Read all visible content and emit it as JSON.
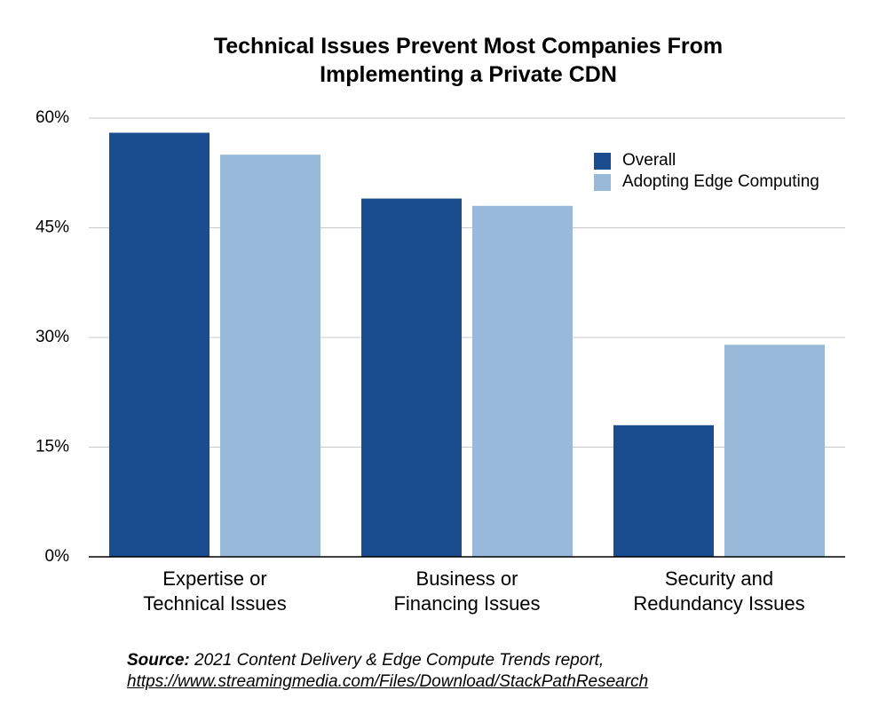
{
  "chart_data": {
    "type": "bar",
    "title": "Technical Issues Prevent Most Companies From\nImplementing a Private CDN",
    "categories": [
      "Expertise or\nTechnical Issues",
      "Business or\nFinancing Issues",
      "Security and\nRedundancy Issues"
    ],
    "series": [
      {
        "name": "Overall",
        "color": "#1a4d8f",
        "values": [
          58,
          49,
          18
        ]
      },
      {
        "name": "Adopting Edge Computing",
        "color": "#98b9da",
        "values": [
          55,
          48,
          29
        ]
      }
    ],
    "ylim": [
      0,
      60
    ],
    "yticks": [
      {
        "value": 0,
        "label": "0%"
      },
      {
        "value": 15,
        "label": "15%"
      },
      {
        "value": 30,
        "label": "30%"
      },
      {
        "value": 45,
        "label": "45%"
      },
      {
        "value": 60,
        "label": "60%"
      }
    ],
    "grid": true,
    "legend": "upper right",
    "source": {
      "label": "Source:",
      "text": "2021 Content Delivery & Edge Compute Trends report,",
      "url": "https://www.streamingmedia.com/Files/Download/StackPathResearch"
    }
  }
}
